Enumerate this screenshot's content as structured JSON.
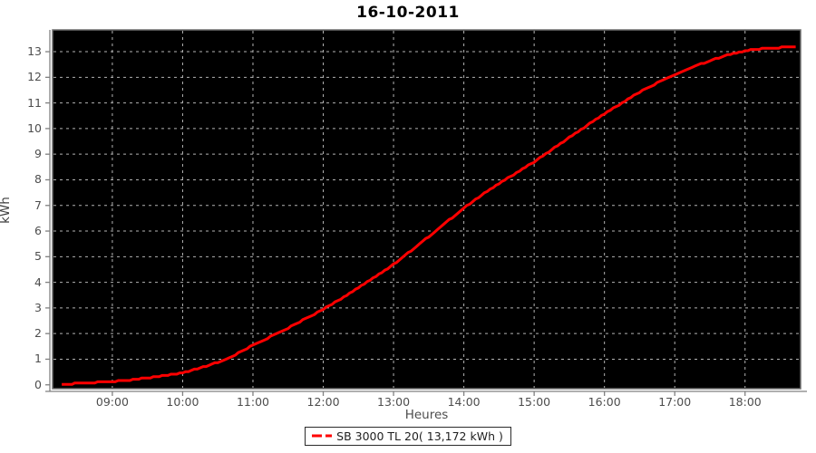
{
  "page": {
    "title": "16-10-2011"
  },
  "chart_data": {
    "type": "line",
    "title": "16-10-2011",
    "xlabel": "Heures",
    "ylabel": "kWh",
    "x_ticks": [
      {
        "hour": 9,
        "label": "09:00"
      },
      {
        "hour": 10,
        "label": "10:00"
      },
      {
        "hour": 11,
        "label": "11:00"
      },
      {
        "hour": 12,
        "label": "12:00"
      },
      {
        "hour": 13,
        "label": "13:00"
      },
      {
        "hour": 14,
        "label": "14:00"
      },
      {
        "hour": 15,
        "label": "15:00"
      },
      {
        "hour": 16,
        "label": "16:00"
      },
      {
        "hour": 17,
        "label": "17:00"
      },
      {
        "hour": 18,
        "label": "18:00"
      }
    ],
    "y_ticks": [
      0,
      1,
      2,
      3,
      4,
      5,
      6,
      7,
      8,
      9,
      10,
      11,
      12,
      13
    ],
    "xlim_hours": [
      8.15,
      18.79
    ],
    "ylim": [
      -0.15,
      13.85
    ],
    "grid": {
      "show": true,
      "style": "dashed",
      "color": "#b3b3b3"
    },
    "colors": {
      "plot_background": "#000000",
      "plot_outline": "#6e6e6e",
      "axis_line": "#808080",
      "tick_text": "#4d4d4d",
      "series_red": "#ff0000"
    },
    "legend": {
      "position": "bottom-center",
      "entries": [
        {
          "label": "SB 3000 TL 20( 13,172 kWh )",
          "color": "#ff0000",
          "line_style": "dashed"
        }
      ]
    },
    "series": [
      {
        "name": "SB 3000 TL 20",
        "color": "#ff0000",
        "points": [
          [
            8.28,
            0.02
          ],
          [
            8.5,
            0.05
          ],
          [
            8.75,
            0.09
          ],
          [
            9.0,
            0.13
          ],
          [
            9.25,
            0.19
          ],
          [
            9.5,
            0.27
          ],
          [
            9.75,
            0.36
          ],
          [
            10.0,
            0.47
          ],
          [
            10.25,
            0.65
          ],
          [
            10.5,
            0.88
          ],
          [
            10.75,
            1.18
          ],
          [
            11.0,
            1.55
          ],
          [
            11.25,
            1.88
          ],
          [
            11.5,
            2.22
          ],
          [
            11.75,
            2.58
          ],
          [
            12.0,
            2.95
          ],
          [
            12.25,
            3.36
          ],
          [
            12.5,
            3.8
          ],
          [
            12.75,
            4.24
          ],
          [
            13.0,
            4.7
          ],
          [
            13.25,
            5.24
          ],
          [
            13.5,
            5.78
          ],
          [
            13.75,
            6.34
          ],
          [
            14.0,
            6.9
          ],
          [
            14.25,
            7.4
          ],
          [
            14.5,
            7.85
          ],
          [
            14.75,
            8.28
          ],
          [
            15.0,
            8.7
          ],
          [
            15.25,
            9.18
          ],
          [
            15.5,
            9.65
          ],
          [
            15.75,
            10.12
          ],
          [
            16.0,
            10.58
          ],
          [
            16.25,
            11.0
          ],
          [
            16.5,
            11.42
          ],
          [
            16.75,
            11.78
          ],
          [
            17.0,
            12.1
          ],
          [
            17.25,
            12.4
          ],
          [
            17.5,
            12.65
          ],
          [
            17.75,
            12.87
          ],
          [
            18.0,
            13.04
          ],
          [
            18.2,
            13.11
          ],
          [
            18.4,
            13.15
          ],
          [
            18.6,
            13.17
          ],
          [
            18.72,
            13.17
          ]
        ]
      }
    ]
  }
}
